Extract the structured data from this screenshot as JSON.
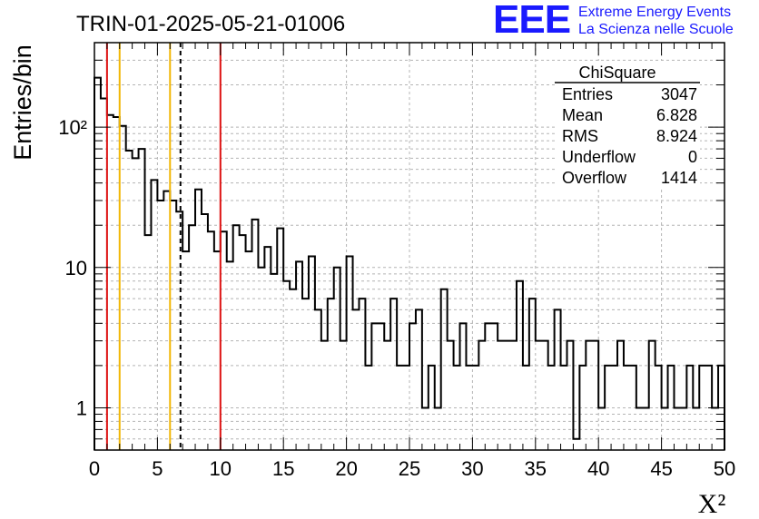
{
  "header": {
    "title": "TRIN-01-2025-05-21-01006"
  },
  "logo": {
    "mark": "EEE",
    "line1": "Extreme Energy Events",
    "line2": "La Scienza nelle Scuole"
  },
  "stats": {
    "name": "ChiSquare",
    "rows": [
      {
        "label": "Entries",
        "value": "3047"
      },
      {
        "label": "Mean",
        "value": "6.828"
      },
      {
        "label": "RMS",
        "value": "8.924"
      },
      {
        "label": "Underflow",
        "value": "0"
      },
      {
        "label": "Overflow",
        "value": "1414"
      }
    ]
  },
  "colors": {
    "red_line": "#dd1111",
    "orange_line": "#f2b705",
    "histogram": "#000000",
    "grid": "#b4b4b4",
    "logo": "#1a1aff"
  },
  "chart_data": {
    "type": "histogram",
    "title": "TRIN-01-2025-05-21-01006",
    "xlabel": "X²",
    "ylabel": "Entries/bin",
    "xlim": [
      0,
      50
    ],
    "ylim": [
      0.5,
      400
    ],
    "yscale": "log",
    "grid": true,
    "bin_width": 0.5,
    "xticks": [
      0,
      5,
      10,
      15,
      20,
      25,
      30,
      35,
      40,
      45,
      50
    ],
    "yticks": [
      {
        "value": 1,
        "label": "1"
      },
      {
        "value": 10,
        "label": "10"
      },
      {
        "value": 100,
        "label": "10²"
      }
    ],
    "values": [
      225,
      160,
      122,
      118,
      102,
      68,
      60,
      70,
      17,
      42,
      30,
      35,
      30,
      25,
      13,
      20,
      36,
      24,
      18,
      13,
      18,
      11,
      20,
      17,
      13,
      22,
      10,
      14,
      9,
      19,
      8,
      7,
      11,
      6,
      12,
      5,
      3,
      6,
      10,
      3,
      12,
      5,
      6,
      2,
      4,
      4,
      3,
      6,
      2,
      2,
      4,
      5,
      1,
      2,
      1,
      7,
      3,
      2,
      4,
      2,
      2,
      3,
      4,
      4,
      3,
      3,
      3,
      8,
      2,
      6,
      3,
      3,
      2,
      5,
      2,
      3,
      0.6,
      2,
      3,
      3,
      1,
      2,
      2,
      3,
      2,
      2,
      1,
      1,
      3,
      2,
      1,
      2,
      1,
      1,
      2,
      1,
      2,
      2,
      1,
      2
    ],
    "vertical_lines": [
      {
        "x": 1.0,
        "color": "#dd1111",
        "style": "solid"
      },
      {
        "x": 2.0,
        "color": "#f2b705",
        "style": "solid"
      },
      {
        "x": 6.0,
        "color": "#f2b705",
        "style": "solid"
      },
      {
        "x": 6.828,
        "color": "#000000",
        "style": "dashed"
      },
      {
        "x": 10.0,
        "color": "#dd1111",
        "style": "solid"
      }
    ]
  }
}
